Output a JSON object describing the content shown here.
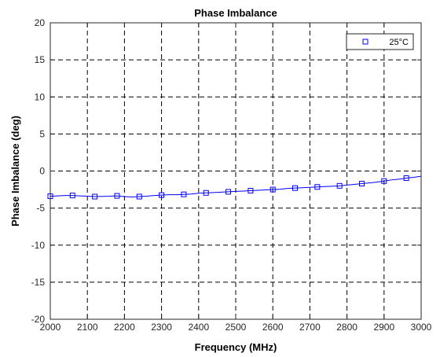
{
  "chart_data": {
    "type": "line",
    "title": "Phase Imbalance",
    "xlabel": "Frequency (MHz)",
    "ylabel": "Phase Imbalance (deg)",
    "xlim": [
      2000,
      3000
    ],
    "ylim": [
      -20,
      20
    ],
    "xticks": [
      2000,
      2100,
      2200,
      2300,
      2400,
      2500,
      2600,
      2700,
      2800,
      2900,
      3000
    ],
    "yticks": [
      -20,
      -15,
      -10,
      -5,
      0,
      5,
      10,
      15,
      20
    ],
    "grid": true,
    "legend_position": "top-right",
    "series": [
      {
        "name": "25°C",
        "color": "#0000ff",
        "marker": "square",
        "x": [
          2000,
          2020,
          2040,
          2060,
          2080,
          2100,
          2120,
          2140,
          2160,
          2180,
          2200,
          2220,
          2240,
          2260,
          2280,
          2300,
          2320,
          2340,
          2360,
          2380,
          2400,
          2420,
          2440,
          2460,
          2480,
          2500,
          2520,
          2540,
          2560,
          2580,
          2600,
          2620,
          2640,
          2660,
          2680,
          2700,
          2720,
          2740,
          2760,
          2780,
          2800,
          2820,
          2840,
          2860,
          2880,
          2900,
          2920,
          2940,
          2960,
          2980,
          3000
        ],
        "y": [
          -3.4,
          -3.35,
          -3.3,
          -3.3,
          -3.35,
          -3.4,
          -3.45,
          -3.42,
          -3.4,
          -3.35,
          -3.45,
          -3.5,
          -3.45,
          -3.4,
          -3.3,
          -3.25,
          -3.2,
          -3.2,
          -3.15,
          -3.1,
          -3.0,
          -2.95,
          -2.9,
          -2.85,
          -2.8,
          -2.75,
          -2.7,
          -2.65,
          -2.6,
          -2.55,
          -2.5,
          -2.45,
          -2.35,
          -2.3,
          -2.25,
          -2.2,
          -2.15,
          -2.1,
          -2.05,
          -2.0,
          -1.9,
          -1.8,
          -1.7,
          -1.6,
          -1.5,
          -1.35,
          -1.2,
          -1.1,
          -0.95,
          -0.85,
          -0.7
        ],
        "marker_indices": [
          0,
          3,
          6,
          9,
          12,
          15,
          18,
          21,
          24,
          27,
          30,
          33,
          36,
          39,
          42,
          45,
          48
        ]
      }
    ]
  }
}
